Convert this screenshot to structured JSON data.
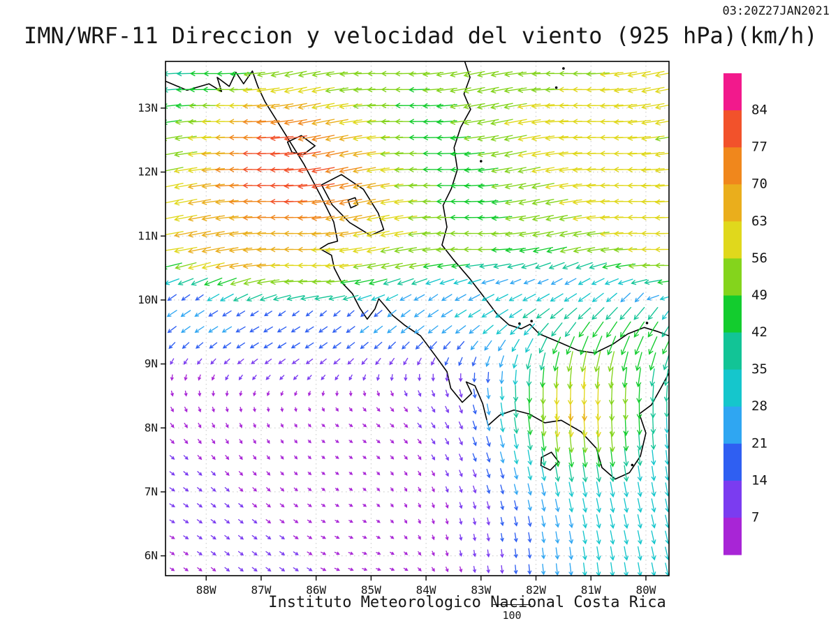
{
  "header": {
    "title": "IMN/WRF-11 Direccion y velocidad del viento (925 hPa)(km/h)",
    "timestamp": "03:20Z27JAN2021"
  },
  "footer": {
    "credit": "Instituto Meteorologico Nacional Costa Rica",
    "ref_label": "100"
  },
  "chart_data": {
    "type": "vector_field_map",
    "title": "IMN/WRF-11 Direccion y velocidad del viento (925 hPa)(km/h)",
    "model": "IMN/WRF-11",
    "variable": "Direccion y velocidad del viento",
    "level": "925 hPa",
    "units": "km/h",
    "valid_time": "03:20Z27JAN2021",
    "lon_range": [
      -88.74,
      -79.58
    ],
    "lat_range": [
      5.69,
      13.73
    ],
    "lon_ticks": [
      "88W",
      "87W",
      "86W",
      "85W",
      "84W",
      "83W",
      "82W",
      "81W",
      "80W"
    ],
    "lat_ticks": [
      "13N",
      "12N",
      "11N",
      "10N",
      "9N",
      "8N",
      "7N",
      "6N"
    ],
    "graticule_step_deg": 1,
    "reference_vector_kmh": 100,
    "speed_levels": [
      7,
      14,
      21,
      28,
      35,
      42,
      49,
      56,
      63,
      70,
      77,
      84
    ],
    "speed_colors": [
      "#a825d6",
      "#7b3cf0",
      "#2f5ff2",
      "#2fa6f2",
      "#15c6cc",
      "#12c496",
      "#13cc2e",
      "#84d41c",
      "#e0d81c",
      "#eaae1c",
      "#f0871c",
      "#f2522b",
      "#f2198c"
    ],
    "regions_summary": [
      {
        "area": "north of ~10N (trade winds)",
        "flow": "easterly, toward the west",
        "speed_kmh": "40-85",
        "note": "green/yellow/orange arrows; strongest red-orange Papagayo jet core 70-84 near 86-87W, 11.5-12.5N"
      },
      {
        "area": "northeast Caribbean 80-82W, 11-13.5N",
        "flow": "easterly",
        "speed_kmh": "55-65",
        "note": "yellow arrows"
      },
      {
        "area": "top-center 83-85W, 12.5-13.7N",
        "flow": "easterly",
        "speed_kmh": "40-50",
        "note": "green arrows"
      },
      {
        "area": "southwest Pacific quadrant south of 10N, west of 83W",
        "flow": "weak, variable, mostly east-southeastward",
        "speed_kmh": "5-15",
        "note": "small purple/violet arrows"
      },
      {
        "area": "transition band 9.7-10.4N",
        "flow": "west-southwestward",
        "speed_kmh": "15-30",
        "note": "blue/cyan arrows"
      },
      {
        "area": "Gulf of Panama and 80-82W south of 9.5N",
        "flow": "southward",
        "speed_kmh": "25-45",
        "note": "cyan/teal arrows with green streak near 81.5W, 8-8.5N"
      }
    ],
    "field_model": {
      "grid_step_deg": 0.25,
      "trade_boundary_lat": 10.05,
      "trade_base_speed": 48,
      "papagayo_jet": {
        "lat": 11.9,
        "lon": -86.6,
        "strength": 30,
        "slat": 1.25,
        "slon": 1.7
      },
      "papagayo_core": {
        "lat": 12.3,
        "lon": -86.9,
        "strength": 6,
        "slat": 0.6,
        "slon": 0.8
      },
      "northeast_band": {
        "lat": 12.8,
        "lon": -80.8,
        "strength": 12,
        "slat": 2.2,
        "slon": 2.8
      },
      "central_lull": {
        "lat": 12.6,
        "lon": -83.9,
        "strength": -12,
        "slat": 2.2,
        "slon": 1.3
      },
      "northwest_lull": {
        "lat": 13.6,
        "lon": -88.4,
        "strength": -18,
        "slat": 1.0,
        "slon": 1.2
      },
      "southwest_band": {
        "strength": 22
      },
      "panama_jet": {
        "lon": -80.2,
        "strength": 28,
        "slon": 1.6
      },
      "gulf_jet": {
        "lat": 8.3,
        "lon": -81.4,
        "strength": 40,
        "slat": 0.7,
        "slon": 0.9
      },
      "south_base": {
        "u": 4,
        "v": -3
      }
    },
    "coastlines": {
      "pacific": [
        [
          -88.74,
          13.42
        ],
        [
          -88.35,
          13.28
        ],
        [
          -87.95,
          13.38
        ],
        [
          -87.72,
          13.26
        ],
        [
          -87.8,
          13.48
        ],
        [
          -87.58,
          13.34
        ],
        [
          -87.46,
          13.56
        ],
        [
          -87.32,
          13.38
        ],
        [
          -87.16,
          13.58
        ],
        [
          -87.06,
          13.34
        ],
        [
          -86.93,
          13.1
        ],
        [
          -86.58,
          12.62
        ],
        [
          -86.22,
          12.12
        ],
        [
          -85.93,
          11.65
        ],
        [
          -85.68,
          11.22
        ],
        [
          -85.61,
          10.92
        ],
        [
          -85.78,
          10.88
        ],
        [
          -85.93,
          10.8
        ],
        [
          -85.72,
          10.7
        ],
        [
          -85.67,
          10.5
        ],
        [
          -85.54,
          10.28
        ],
        [
          -85.34,
          10.1
        ],
        [
          -85.21,
          9.88
        ],
        [
          -85.07,
          9.7
        ],
        [
          -84.93,
          9.86
        ],
        [
          -84.86,
          10.02
        ],
        [
          -84.74,
          9.9
        ],
        [
          -84.61,
          9.76
        ],
        [
          -84.38,
          9.6
        ],
        [
          -84.1,
          9.44
        ],
        [
          -83.84,
          9.14
        ],
        [
          -83.62,
          8.88
        ],
        [
          -83.55,
          8.62
        ],
        [
          -83.34,
          8.4
        ],
        [
          -83.17,
          8.54
        ],
        [
          -83.27,
          8.72
        ],
        [
          -83.11,
          8.66
        ],
        [
          -82.97,
          8.38
        ],
        [
          -82.87,
          8.04
        ],
        [
          -82.66,
          8.2
        ],
        [
          -82.4,
          8.28
        ],
        [
          -82.13,
          8.22
        ],
        [
          -81.84,
          8.08
        ],
        [
          -81.54,
          8.12
        ],
        [
          -81.18,
          7.94
        ],
        [
          -80.9,
          7.68
        ],
        [
          -80.8,
          7.38
        ],
        [
          -80.56,
          7.2
        ],
        [
          -80.3,
          7.3
        ],
        [
          -80.1,
          7.56
        ],
        [
          -80.0,
          7.92
        ],
        [
          -80.12,
          8.22
        ],
        [
          -79.9,
          8.36
        ],
        [
          -79.73,
          8.62
        ],
        [
          -79.58,
          8.86
        ]
      ],
      "caribbean": [
        [
          -83.3,
          13.74
        ],
        [
          -83.2,
          13.48
        ],
        [
          -83.31,
          13.22
        ],
        [
          -83.19,
          12.98
        ],
        [
          -83.37,
          12.7
        ],
        [
          -83.49,
          12.38
        ],
        [
          -83.43,
          12.04
        ],
        [
          -83.54,
          11.74
        ],
        [
          -83.69,
          11.48
        ],
        [
          -83.62,
          11.14
        ],
        [
          -83.71,
          10.86
        ],
        [
          -83.51,
          10.64
        ],
        [
          -83.21,
          10.34
        ],
        [
          -82.94,
          10.04
        ],
        [
          -82.71,
          9.78
        ],
        [
          -82.49,
          9.61
        ],
        [
          -82.27,
          9.55
        ],
        [
          -82.11,
          9.62
        ],
        [
          -81.94,
          9.47
        ],
        [
          -81.58,
          9.34
        ],
        [
          -81.23,
          9.21
        ],
        [
          -80.93,
          9.17
        ],
        [
          -80.6,
          9.31
        ],
        [
          -80.33,
          9.47
        ],
        [
          -80.03,
          9.57
        ],
        [
          -79.8,
          9.51
        ],
        [
          -79.58,
          9.44
        ]
      ],
      "lake_nicaragua": [
        [
          -85.9,
          11.8
        ],
        [
          -85.54,
          11.96
        ],
        [
          -85.14,
          11.73
        ],
        [
          -84.87,
          11.36
        ],
        [
          -84.77,
          11.1
        ],
        [
          -85.01,
          11.01
        ],
        [
          -85.39,
          11.21
        ],
        [
          -85.71,
          11.49
        ]
      ],
      "lake_managua": [
        [
          -86.52,
          12.47
        ],
        [
          -86.27,
          12.57
        ],
        [
          -86.02,
          12.41
        ],
        [
          -86.24,
          12.27
        ],
        [
          -86.44,
          12.31
        ]
      ],
      "ometepe_island": [
        [
          -85.42,
          11.56
        ],
        [
          -85.29,
          11.6
        ],
        [
          -85.24,
          11.49
        ],
        [
          -85.37,
          11.44
        ]
      ],
      "coiba_island": [
        [
          -81.9,
          7.54
        ],
        [
          -81.72,
          7.62
        ],
        [
          -81.59,
          7.47
        ],
        [
          -81.74,
          7.34
        ],
        [
          -81.91,
          7.41
        ]
      ],
      "islets": [
        [
          -81.5,
          13.62
        ],
        [
          -81.63,
          13.32
        ],
        [
          -83.0,
          12.17
        ],
        [
          -82.3,
          9.63
        ],
        [
          -82.08,
          9.67
        ],
        [
          -79.98,
          9.64
        ],
        [
          -80.25,
          7.42
        ]
      ]
    }
  }
}
